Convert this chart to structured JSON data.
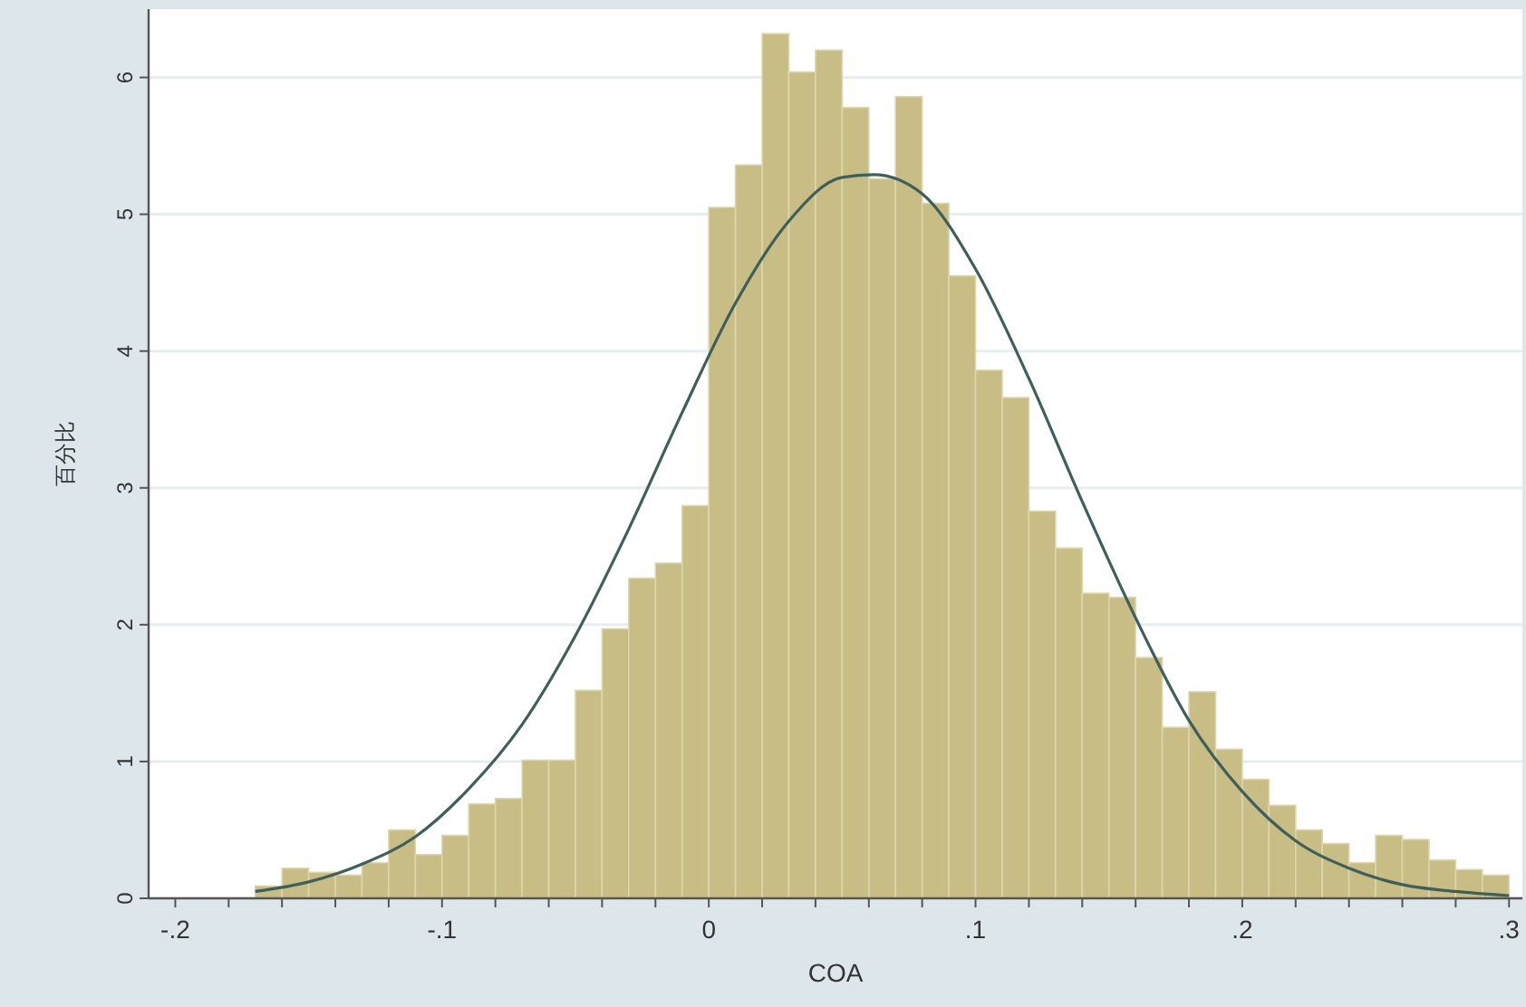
{
  "chart_data": {
    "type": "histogram",
    "xlabel": "COA",
    "ylabel": "百分比",
    "bins": [
      -0.17,
      -0.16,
      -0.15,
      -0.14,
      -0.13,
      -0.12,
      -0.11,
      -0.1,
      -0.09,
      -0.08,
      -0.07,
      -0.06,
      -0.05,
      -0.04,
      -0.03,
      -0.02,
      -0.01,
      0.0,
      0.01,
      0.02,
      0.03,
      0.04,
      0.05,
      0.06,
      0.07,
      0.08,
      0.09,
      0.1,
      0.11,
      0.12,
      0.13,
      0.14,
      0.15,
      0.16,
      0.17,
      0.18,
      0.19,
      0.2,
      0.21,
      0.22,
      0.23,
      0.24,
      0.25,
      0.26,
      0.27,
      0.28,
      0.29,
      0.3
    ],
    "series": [
      {
        "color": "#c8bd84",
        "values": [
          0.09,
          0.22,
          0.19,
          0.17,
          0.26,
          0.5,
          0.32,
          0.46,
          0.69,
          0.73,
          1.01,
          1.01,
          1.52,
          1.97,
          2.34,
          2.45,
          2.87,
          5.05,
          5.36,
          6.32,
          6.04,
          6.2,
          5.78,
          5.26,
          5.86,
          5.08,
          4.55,
          3.86,
          3.66,
          2.83,
          2.56,
          2.23,
          2.2,
          1.76,
          1.25,
          1.51,
          1.09,
          0.87,
          0.68,
          0.5,
          0.4,
          0.26,
          0.46,
          0.43,
          0.28,
          0.21,
          0.17
        ]
      },
      {
        "type": "line",
        "color": "#3f5f5a",
        "x": [
          -0.17,
          -0.15,
          -0.13,
          -0.11,
          -0.09,
          -0.07,
          -0.05,
          -0.03,
          -0.01,
          0.01,
          0.03,
          0.05,
          0.062,
          0.08,
          0.1,
          0.12,
          0.14,
          0.16,
          0.18,
          0.2,
          0.22,
          0.24,
          0.26,
          0.28,
          0.3
        ],
        "values": [
          0.05,
          0.12,
          0.25,
          0.45,
          0.8,
          1.27,
          1.92,
          2.7,
          3.55,
          4.35,
          4.95,
          5.27,
          5.29,
          5.15,
          4.6,
          3.8,
          2.9,
          2.05,
          1.3,
          0.78,
          0.42,
          0.22,
          0.1,
          0.05,
          0.02
        ]
      }
    ],
    "xlim": [
      -0.21,
      0.305
    ],
    "ylim": [
      0,
      6.5
    ],
    "xticks": [
      {
        "value": -0.2,
        "label": "-.2"
      },
      {
        "value": -0.18,
        "label": null
      },
      {
        "value": -0.16,
        "label": null
      },
      {
        "value": -0.14,
        "label": null
      },
      {
        "value": -0.12,
        "label": null
      },
      {
        "value": -0.1,
        "label": "-.1"
      },
      {
        "value": -0.08,
        "label": null
      },
      {
        "value": -0.06,
        "label": null
      },
      {
        "value": -0.04,
        "label": null
      },
      {
        "value": -0.02,
        "label": null
      },
      0,
      {
        "value": 0.02,
        "label": null
      },
      {
        "value": 0.04,
        "label": null
      },
      {
        "value": 0.06,
        "label": null
      },
      {
        "value": 0.08,
        "label": null
      },
      {
        "value": 0.1,
        "label": ".1"
      },
      {
        "value": 0.12,
        "label": null
      },
      {
        "value": 0.14,
        "label": null
      },
      {
        "value": 0.16,
        "label": null
      },
      {
        "value": 0.18,
        "label": null
      },
      {
        "value": 0.2,
        "label": ".2"
      },
      {
        "value": 0.22,
        "label": null
      },
      {
        "value": 0.24,
        "label": null
      },
      {
        "value": 0.26,
        "label": null
      },
      {
        "value": 0.28,
        "label": null
      },
      {
        "value": 0.3,
        "label": ".3"
      }
    ],
    "yticks": [
      0,
      1,
      2,
      3,
      4,
      5,
      6
    ],
    "grid": "y"
  }
}
